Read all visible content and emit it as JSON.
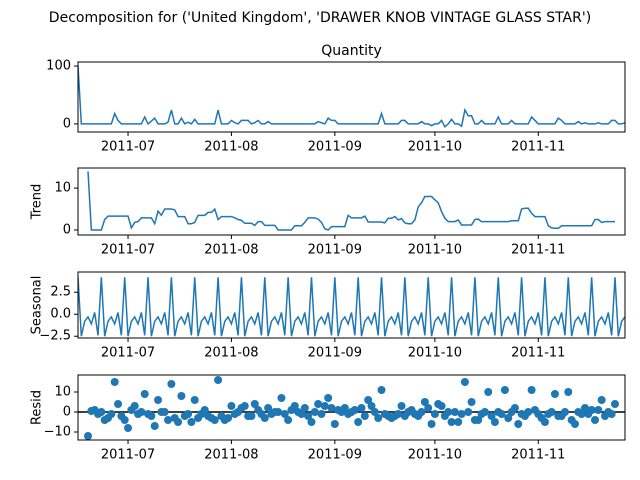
{
  "title": "Decomposition for ('United Kingdom', 'DRAWER KNOB VINTAGE GLASS STAR')",
  "chart_data": [
    {
      "type": "line",
      "title": "Quantity",
      "color": "#1f77b4",
      "xlim": [
        0,
        164
      ],
      "ylim": [
        -14,
        107
      ],
      "yticks": [
        0,
        100
      ],
      "xticks": [
        {
          "value": 15,
          "label": "2011-07"
        },
        {
          "value": 46,
          "label": "2011-08"
        },
        {
          "value": 77,
          "label": "2011-09"
        },
        {
          "value": 107,
          "label": "2011-10"
        },
        {
          "value": 138,
          "label": "2011-11"
        }
      ],
      "values": [
        100,
        0,
        0,
        0,
        0,
        0,
        0,
        0,
        0,
        0,
        0,
        18,
        6,
        0,
        0,
        0,
        0,
        0,
        0,
        0,
        12,
        0,
        5,
        10,
        0,
        0,
        0,
        3,
        24,
        0,
        0,
        10,
        0,
        3,
        0,
        8,
        0,
        0,
        0,
        0,
        0,
        0,
        24,
        0,
        0,
        0,
        6,
        2,
        0,
        6,
        6,
        6,
        0,
        2,
        6,
        0,
        0,
        4,
        0,
        0,
        0,
        0,
        0,
        0,
        0,
        0,
        0,
        0,
        0,
        0,
        0,
        0,
        4,
        2,
        0,
        10,
        6,
        6,
        0,
        0,
        0,
        0,
        0,
        0,
        0,
        0,
        0,
        0,
        0,
        0,
        0,
        18,
        0,
        0,
        0,
        0,
        0,
        6,
        6,
        0,
        0,
        0,
        0,
        4,
        0,
        0,
        -3,
        0,
        0,
        6,
        -5,
        0,
        8,
        0,
        0,
        -4,
        24,
        14,
        14,
        0,
        0,
        6,
        0,
        0,
        0,
        0,
        12,
        0,
        0,
        0,
        6,
        0,
        0,
        0,
        0,
        0,
        12,
        6,
        0,
        0,
        0,
        0,
        0,
        0,
        10,
        6,
        0,
        0,
        0,
        0,
        4,
        0,
        2,
        0,
        0,
        0,
        2,
        0,
        0,
        0,
        6,
        6,
        0,
        0,
        2
      ]
    },
    {
      "type": "line",
      "ylabel": "Trend",
      "color": "#1f77b4",
      "xlim": [
        0,
        164
      ],
      "ylim": [
        -1.2,
        14.8
      ],
      "yticks": [
        0,
        10
      ],
      "xticks": [
        {
          "value": 15,
          "label": "2011-07"
        },
        {
          "value": 46,
          "label": "2011-08"
        },
        {
          "value": 77,
          "label": "2011-09"
        },
        {
          "value": 107,
          "label": "2011-10"
        },
        {
          "value": 138,
          "label": "2011-11"
        }
      ],
      "values": [
        null,
        null,
        null,
        14,
        0,
        0,
        0,
        0,
        2.5,
        3.3,
        3.3,
        3.3,
        3.3,
        3.3,
        3.3,
        3.3,
        0.5,
        1.8,
        2,
        2.9,
        2.9,
        2.9,
        2.9,
        1.5,
        4.5,
        3.5,
        5,
        5,
        5,
        4.8,
        3.2,
        3.2,
        3.2,
        1.5,
        1.5,
        1.8,
        3.5,
        3.5,
        3.5,
        4.2,
        4.2,
        5,
        2.5,
        3.2,
        3.2,
        3.2,
        3.2,
        2.9,
        2.5,
        2.3,
        1.6,
        1.6,
        1.6,
        1.1,
        2,
        2,
        1.1,
        1.1,
        1.1,
        1.1,
        0,
        0,
        0,
        0,
        0,
        1,
        1,
        1,
        1.8,
        2.9,
        2.9,
        2.9,
        2.6,
        1.8,
        0.3,
        0,
        0.8,
        0.8,
        0.8,
        0.8,
        0.8,
        3.5,
        2.9,
        2.9,
        2.9,
        2.9,
        3.3,
        1.9,
        1.9,
        1.9,
        1.9,
        1.9,
        1.7,
        2.8,
        2.8,
        3.2,
        2.4,
        2.7,
        1.7,
        1.5,
        1.5,
        2.4,
        5.5,
        6.5,
        8,
        8,
        8,
        7.2,
        6.5,
        4.4,
        2.8,
        2,
        2,
        2,
        2.4,
        1.2,
        1.2,
        1.2,
        1.2,
        2.5,
        2.6,
        2,
        2,
        2,
        2,
        2,
        2,
        2,
        2,
        2,
        2.2,
        2.2,
        2.2,
        5,
        5.2,
        5.2,
        4,
        3.2,
        3.2,
        3.2,
        3.2,
        1,
        0.5,
        0.4,
        0.4,
        1,
        1,
        1,
        1,
        1,
        1,
        1,
        1,
        1,
        1,
        2.5,
        2.5,
        1.8,
        2,
        2,
        2,
        2,
        null,
        null,
        null
      ]
    },
    {
      "type": "line",
      "ylabel": "Seasonal",
      "color": "#1f77b4",
      "xlim": [
        0,
        164
      ],
      "ylim": [
        -2.7,
        4.8
      ],
      "yticks": [
        {
          "value": -2.5,
          "label": "−2.5"
        },
        {
          "value": 0,
          "label": "0.0"
        },
        2.5
      ],
      "xticks": [
        {
          "value": 15,
          "label": "2011-07"
        },
        {
          "value": 46,
          "label": "2011-08"
        },
        {
          "value": 77,
          "label": "2011-09"
        },
        {
          "value": 107,
          "label": "2011-10"
        },
        {
          "value": 138,
          "label": "2011-11"
        }
      ],
      "values": [
        4.2,
        -2.5,
        -0.8,
        -0.3,
        -1.1,
        0.2,
        -2.4,
        4.2,
        -2.5,
        -0.8,
        -0.3,
        -1.1,
        0.2,
        -2.4,
        4.2,
        -2.5,
        -0.8,
        -0.3,
        -1.1,
        0.2,
        -2.4,
        4.2,
        -2.5,
        -0.8,
        -0.3,
        -1.1,
        0.2,
        -2.4,
        4.2,
        -2.5,
        -0.8,
        -0.3,
        -1.1,
        0.2,
        -2.4,
        4.2,
        -2.5,
        -0.8,
        -0.3,
        -1.1,
        0.2,
        -2.4,
        4.2,
        -2.5,
        -0.8,
        -0.3,
        -1.1,
        0.2,
        -2.4,
        4.2,
        -2.5,
        -0.8,
        -0.3,
        -1.1,
        0.2,
        -2.4,
        4.2,
        -2.5,
        -0.8,
        -0.3,
        -1.1,
        0.2,
        -2.4,
        4.2,
        -2.5,
        -0.8,
        -0.3,
        -1.1,
        0.2,
        -2.4,
        4.2,
        -2.5,
        -0.8,
        -0.3,
        -1.1,
        0.2,
        -2.4,
        4.2,
        -2.5,
        -0.8,
        -0.3,
        -1.1,
        0.2,
        -2.4,
        4.2,
        -2.5,
        -0.8,
        -0.3,
        -1.1,
        0.2,
        -2.4,
        4.2,
        -2.5,
        -0.8,
        -0.3,
        -1.1,
        0.2,
        -2.4,
        4.2,
        -2.5,
        -0.8,
        -0.3,
        -1.1,
        0.2,
        -2.4,
        4.2,
        -2.5,
        -0.8,
        -0.3,
        -1.1,
        0.2,
        -2.4,
        4.2,
        -2.5,
        -0.8,
        -0.3,
        -1.1,
        0.2,
        -2.4,
        4.2,
        -2.5,
        -0.8,
        -0.3,
        -1.1,
        0.2,
        -2.4,
        4.2,
        -2.5,
        -0.8,
        -0.3,
        -1.1,
        0.2,
        -2.4,
        4.2,
        -2.5,
        -0.8,
        -0.3,
        -1.1,
        0.2,
        -2.4,
        4.2,
        -2.5,
        -0.8,
        -0.3,
        -1.1,
        0.2,
        -2.4,
        4.2,
        -2.5,
        -0.8,
        -0.3,
        -1.1,
        0.2,
        -2.4,
        4.2,
        -2.5,
        -0.8,
        -0.3,
        -1.1,
        0.2,
        -2.4,
        4.2,
        -2.5,
        -0.8,
        -0.3
      ]
    },
    {
      "type": "scatter",
      "ylabel": "Resid",
      "color": "#1f77b4",
      "baseline": 0,
      "xlim": [
        0,
        164
      ],
      "ylim": [
        -14,
        18.5
      ],
      "yticks": [
        {
          "value": -10,
          "label": "−10"
        },
        0,
        10
      ],
      "xticks": [
        {
          "value": 15,
          "label": "2011-07"
        },
        {
          "value": 46,
          "label": "2011-08"
        },
        {
          "value": 77,
          "label": "2011-09"
        },
        {
          "value": 107,
          "label": "2011-10"
        },
        {
          "value": 138,
          "label": "2011-11"
        }
      ],
      "values": [
        null,
        null,
        null,
        -12,
        0.5,
        1,
        -1,
        0,
        -4,
        -3,
        -1,
        15,
        4,
        -2,
        -4,
        -8,
        1,
        3,
        -1,
        0,
        9,
        -1,
        -2,
        -7,
        6,
        0,
        0,
        -4,
        14,
        -3,
        -5,
        8,
        -2,
        -1,
        -5,
        6,
        -3,
        -1,
        1,
        -2,
        -3,
        -4,
        16,
        -2,
        -4,
        -3,
        3,
        -1,
        0,
        2,
        3,
        -2,
        -2,
        4,
        1,
        -1,
        -3,
        2,
        -1,
        0,
        0,
        7,
        -1,
        -4,
        1,
        3,
        0,
        -1,
        2,
        -2,
        -5,
        0,
        4,
        -1,
        3,
        7,
        2,
        -6,
        1,
        0,
        2,
        -1,
        0,
        1,
        -5,
        2,
        -2,
        6,
        3,
        0,
        -3,
        11,
        -1,
        -2,
        -3,
        -2,
        -1,
        3,
        -2,
        0,
        1,
        -1,
        -2,
        0,
        5,
        2,
        -6,
        -1,
        4,
        3,
        -2,
        0,
        -5,
        0,
        -5,
        -1,
        15,
        0,
        5,
        -4,
        -4,
        -1,
        0,
        10,
        -2,
        -5,
        0,
        -1,
        11,
        -3,
        0,
        2,
        -6,
        -1,
        -2,
        0,
        11,
        1,
        -1,
        -3,
        -5,
        -1,
        0,
        9,
        -2,
        -2,
        0,
        10,
        -4,
        -6,
        0,
        -1,
        2,
        -1,
        1,
        -4,
        1,
        6,
        -2,
        0,
        -1,
        4,
        null,
        null,
        null
      ]
    }
  ]
}
